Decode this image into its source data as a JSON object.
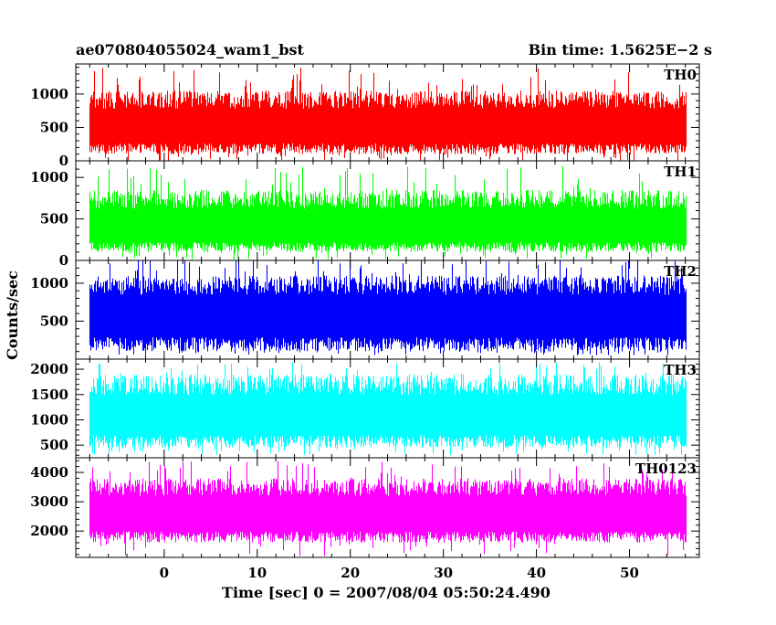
{
  "header": {
    "left_title": "ae070804055024_wam1_bst",
    "right_title": "Bin time: 1.5625E−2 s"
  },
  "axes": {
    "xlabel": "Time [sec] 0 = 2007/08/04 05:50:24.490",
    "ylabel": "Counts/sec",
    "x_ticks": [
      "0",
      "10",
      "20",
      "30",
      "40",
      "50"
    ]
  },
  "chart_data": {
    "type": "line",
    "title": "ae070804055024_wam1_bst",
    "xlabel": "Time [sec] 0 = 2007/08/04 05:50:24.490",
    "ylabel": "Counts/sec",
    "xlim": [
      -9.5,
      57.5
    ],
    "data_x_range": [
      -8,
      56
    ],
    "x_ticks": [
      0,
      10,
      20,
      30,
      40,
      50
    ],
    "panels": [
      {
        "name": "TH0",
        "color": "#ff0000",
        "ylim": [
          0,
          1450
        ],
        "y_ticks": [
          0,
          500,
          1000
        ],
        "y_tick_labels": [
          "0",
          "500",
          "1000"
        ],
        "baseline": 560,
        "typical_low": 100,
        "typical_high": 1050,
        "min": 0,
        "max": 1400
      },
      {
        "name": "TH1",
        "color": "#00ff00",
        "ylim": [
          0,
          1200
        ],
        "y_ticks": [
          0,
          500,
          1000
        ],
        "y_tick_labels": [
          "0",
          "500",
          "1000"
        ],
        "baseline": 440,
        "typical_low": 100,
        "typical_high": 850,
        "min": 0,
        "max": 1150
      },
      {
        "name": "TH2",
        "color": "#0000ff",
        "ylim": [
          0,
          1300
        ],
        "y_ticks": [
          500,
          1000
        ],
        "y_tick_labels": [
          "500",
          "1000"
        ],
        "baseline": 640,
        "typical_low": 100,
        "typical_high": 1100,
        "min": 50,
        "max": 1350
      },
      {
        "name": "TH3",
        "color": "#00ffff",
        "ylim": [
          250,
          2200
        ],
        "y_ticks": [
          500,
          1000,
          1500,
          2000
        ],
        "y_tick_labels": [
          "500",
          "1000",
          "1500",
          "2000"
        ],
        "baseline": 1150,
        "typical_low": 450,
        "typical_high": 1900,
        "min": 300,
        "max": 2150
      },
      {
        "name": "TH0123",
        "color": "#ff00ff",
        "ylim": [
          1100,
          4500
        ],
        "y_ticks": [
          2000,
          3000,
          4000
        ],
        "y_tick_labels": [
          "2000",
          "3000",
          "4000"
        ],
        "baseline": 2700,
        "typical_low": 1600,
        "typical_high": 3800,
        "min": 1150,
        "max": 4400
      }
    ]
  }
}
